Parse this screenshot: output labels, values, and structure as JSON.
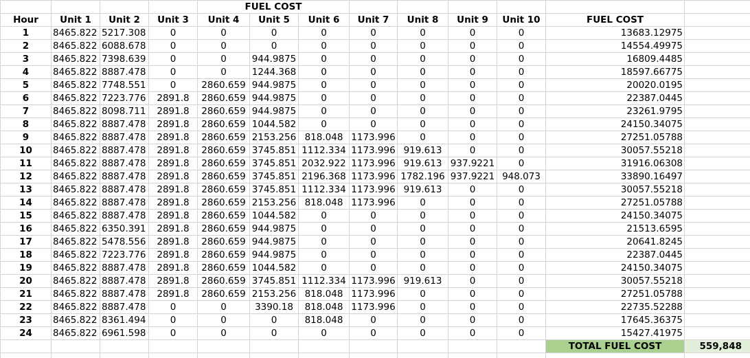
{
  "title": "FUEL COST",
  "headers": [
    "Hour",
    "Unit 1",
    "Unit 2",
    "Unit 3",
    "Unit 4",
    "Unit 5",
    "Unit 6",
    "Unit 7",
    "Unit 8",
    "Unit 9",
    "Unit 10",
    "FUEL COST"
  ],
  "rows": [
    [
      "1",
      "8465.822",
      "5217.308",
      "0",
      "0",
      "0",
      "0",
      "0",
      "0",
      "0",
      "0",
      "13683.12975"
    ],
    [
      "2",
      "8465.822",
      "6088.678",
      "0",
      "0",
      "0",
      "0",
      "0",
      "0",
      "0",
      "0",
      "14554.49975"
    ],
    [
      "3",
      "8465.822",
      "7398.639",
      "0",
      "0",
      "944.9875",
      "0",
      "0",
      "0",
      "0",
      "0",
      "16809.4485"
    ],
    [
      "4",
      "8465.822",
      "8887.478",
      "0",
      "0",
      "1244.368",
      "0",
      "0",
      "0",
      "0",
      "0",
      "18597.66775"
    ],
    [
      "5",
      "8465.822",
      "7748.551",
      "0",
      "2860.659",
      "944.9875",
      "0",
      "0",
      "0",
      "0",
      "0",
      "20020.0195"
    ],
    [
      "6",
      "8465.822",
      "7223.776",
      "2891.8",
      "2860.659",
      "944.9875",
      "0",
      "0",
      "0",
      "0",
      "0",
      "22387.0445"
    ],
    [
      "7",
      "8465.822",
      "8098.711",
      "2891.8",
      "2860.659",
      "944.9875",
      "0",
      "0",
      "0",
      "0",
      "0",
      "23261.9795"
    ],
    [
      "8",
      "8465.822",
      "8887.478",
      "2891.8",
      "2860.659",
      "1044.582",
      "0",
      "0",
      "0",
      "0",
      "0",
      "24150.34075"
    ],
    [
      "9",
      "8465.822",
      "8887.478",
      "2891.8",
      "2860.659",
      "2153.256",
      "818.048",
      "1173.996",
      "0",
      "0",
      "0",
      "27251.05788"
    ],
    [
      "10",
      "8465.822",
      "8887.478",
      "2891.8",
      "2860.659",
      "3745.851",
      "1112.334",
      "1173.996",
      "919.613",
      "0",
      "0",
      "30057.55218"
    ],
    [
      "11",
      "8465.822",
      "8887.478",
      "2891.8",
      "2860.659",
      "3745.851",
      "2032.922",
      "1173.996",
      "919.613",
      "937.9221",
      "0",
      "31916.06308"
    ],
    [
      "12",
      "8465.822",
      "8887.478",
      "2891.8",
      "2860.659",
      "3745.851",
      "2196.368",
      "1173.996",
      "1782.196",
      "937.9221",
      "948.073",
      "33890.16497"
    ],
    [
      "13",
      "8465.822",
      "8887.478",
      "2891.8",
      "2860.659",
      "3745.851",
      "1112.334",
      "1173.996",
      "919.613",
      "0",
      "0",
      "30057.55218"
    ],
    [
      "14",
      "8465.822",
      "8887.478",
      "2891.8",
      "2860.659",
      "2153.256",
      "818.048",
      "1173.996",
      "0",
      "0",
      "0",
      "27251.05788"
    ],
    [
      "15",
      "8465.822",
      "8887.478",
      "2891.8",
      "2860.659",
      "1044.582",
      "0",
      "0",
      "0",
      "0",
      "0",
      "24150.34075"
    ],
    [
      "16",
      "8465.822",
      "6350.391",
      "2891.8",
      "2860.659",
      "944.9875",
      "0",
      "0",
      "0",
      "0",
      "0",
      "21513.6595"
    ],
    [
      "17",
      "8465.822",
      "5478.556",
      "2891.8",
      "2860.659",
      "944.9875",
      "0",
      "0",
      "0",
      "0",
      "0",
      "20641.8245"
    ],
    [
      "18",
      "8465.822",
      "7223.776",
      "2891.8",
      "2860.659",
      "944.9875",
      "0",
      "0",
      "0",
      "0",
      "0",
      "22387.0445"
    ],
    [
      "19",
      "8465.822",
      "8887.478",
      "2891.8",
      "2860.659",
      "1044.582",
      "0",
      "0",
      "0",
      "0",
      "0",
      "24150.34075"
    ],
    [
      "20",
      "8465.822",
      "8887.478",
      "2891.8",
      "2860.659",
      "3745.851",
      "1112.334",
      "1173.996",
      "919.613",
      "0",
      "0",
      "30057.55218"
    ],
    [
      "21",
      "8465.822",
      "8887.478",
      "2891.8",
      "2860.659",
      "2153.256",
      "818.048",
      "1173.996",
      "0",
      "0",
      "0",
      "27251.05788"
    ],
    [
      "22",
      "8465.822",
      "8887.478",
      "0",
      "0",
      "3390.18",
      "818.048",
      "1173.996",
      "0",
      "0",
      "0",
      "22735.52288"
    ],
    [
      "23",
      "8465.822",
      "8361.494",
      "0",
      "0",
      "0",
      "818.048",
      "0",
      "0",
      "0",
      "0",
      "17645.36375"
    ],
    [
      "24",
      "8465.822",
      "6961.598",
      "0",
      "0",
      "0",
      "0",
      "0",
      "0",
      "0",
      "0",
      "15427.41975"
    ]
  ],
  "total": {
    "label": "TOTAL FUEL COST",
    "value": "559,848"
  },
  "colors": {
    "total_label_bg": "#a9d08e",
    "total_value_bg": "#e2efda",
    "gridline": "#d4d4d4"
  }
}
